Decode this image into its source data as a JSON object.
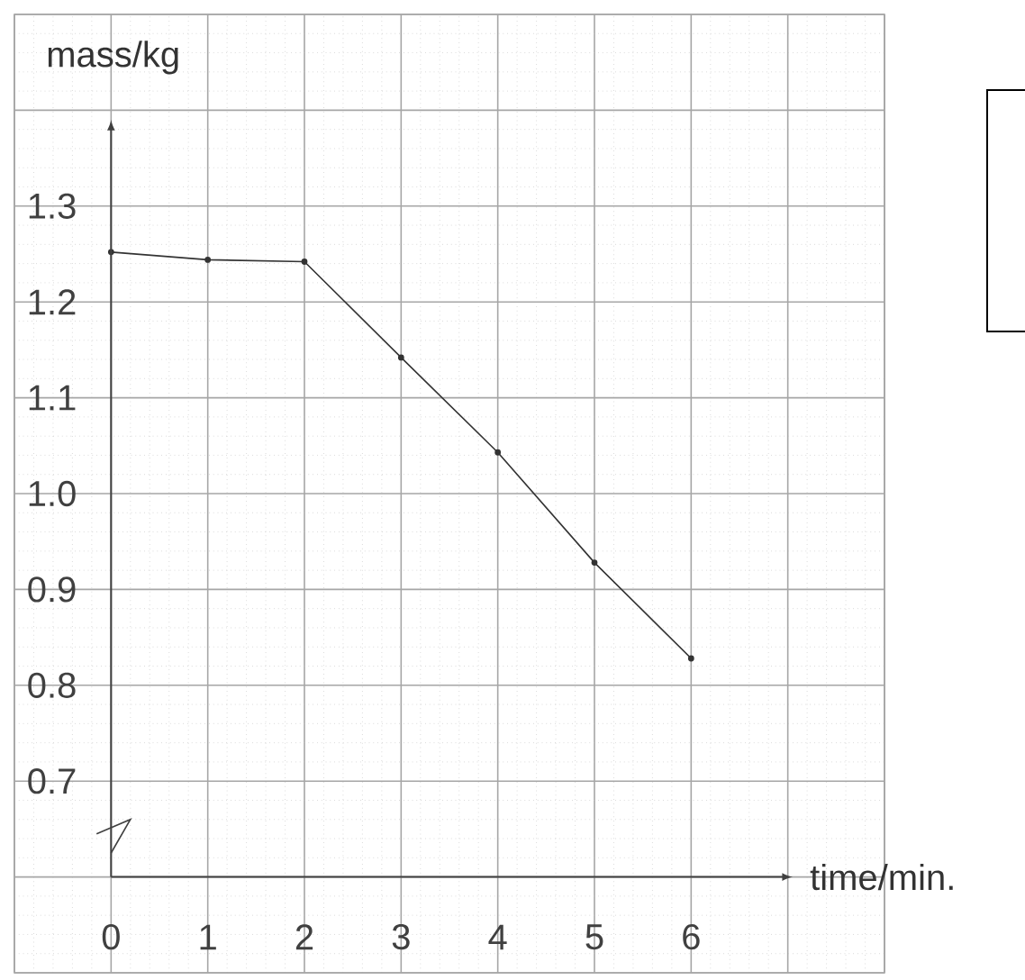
{
  "chart_data": {
    "type": "line",
    "xlabel": "time/min.",
    "ylabel": "mass/kg",
    "x": [
      0,
      1,
      2,
      3,
      4,
      5,
      6
    ],
    "series": [
      {
        "color": "#333333",
        "values": [
          1.252,
          1.244,
          1.242,
          1.142,
          1.043,
          0.928,
          0.828
        ]
      }
    ],
    "xlim": [
      -1,
      8
    ],
    "ylim": [
      0.5,
      1.5
    ],
    "xticks": [
      {
        "value": -1,
        "label": null
      },
      {
        "value": 0,
        "label": "0"
      },
      1,
      2,
      3,
      4,
      5,
      6,
      {
        "value": 7,
        "label": null
      },
      {
        "value": 8,
        "label": null
      }
    ],
    "yticks": [
      {
        "value": 0.5,
        "label": null
      },
      {
        "value": 0.6,
        "label": null
      },
      0.7,
      0.8,
      0.9,
      {
        "value": 1.0,
        "label": "1.0"
      },
      1.1,
      1.2,
      1.3,
      {
        "value": 1.4,
        "label": null
      },
      {
        "value": 1.5,
        "label": null
      }
    ],
    "grid": true,
    "marker": "circle",
    "line_style": "solid"
  }
}
